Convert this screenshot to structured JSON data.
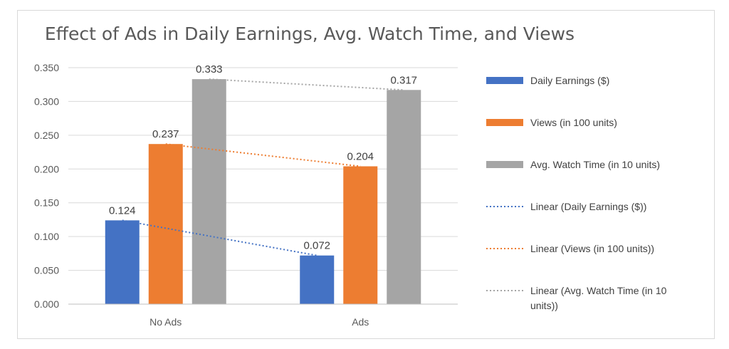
{
  "chart_data": {
    "type": "bar",
    "title": "Effect of Ads in Daily Earnings, Avg. Watch Time, and Views",
    "categories": [
      "No Ads",
      "Ads"
    ],
    "series": [
      {
        "name": "Daily Earnings ($)",
        "values": [
          0.124,
          0.072
        ],
        "color": "#4472c4"
      },
      {
        "name": "Views (in 100 units)",
        "values": [
          0.237,
          0.204
        ],
        "color": "#ed7d31"
      },
      {
        "name": "Avg. Watch Time (in 10 units)",
        "values": [
          0.333,
          0.317
        ],
        "color": "#a5a5a5"
      }
    ],
    "data_labels": [
      [
        "0.124",
        "0.072"
      ],
      [
        "0.237",
        "0.204"
      ],
      [
        "0.333",
        "0.317"
      ]
    ],
    "trendlines": [
      {
        "name": "Linear (Daily Earnings ($))",
        "type": "linear",
        "series_index": 0
      },
      {
        "name": "Linear (Views (in 100 units))",
        "type": "linear",
        "series_index": 1
      },
      {
        "name": "Linear (Avg. Watch Time (in 10 units))",
        "type": "linear",
        "series_index": 2
      }
    ],
    "yticks": [
      "0.000",
      "0.050",
      "0.100",
      "0.150",
      "0.200",
      "0.250",
      "0.300",
      "0.350"
    ],
    "ylim": [
      0,
      0.35
    ],
    "grid": true,
    "legend_position": "right"
  }
}
